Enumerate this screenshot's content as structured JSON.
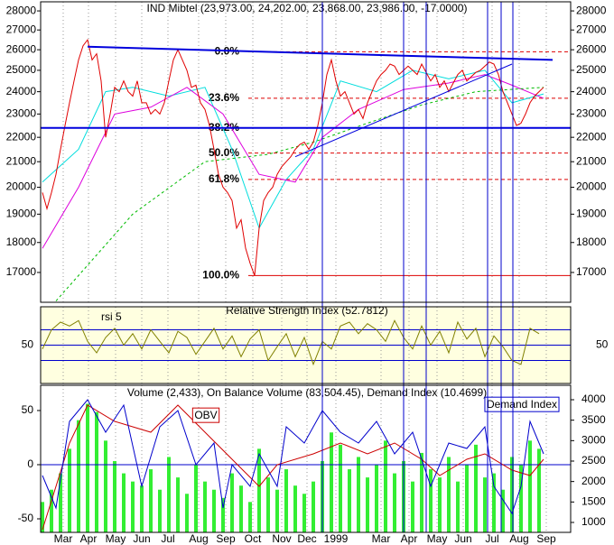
{
  "chart_data": [
    {
      "type": "line",
      "title": "IND Mibtel (23,973.00, 24,202.00, 23,868.00, 23,986.00, -17.0000)",
      "log": true,
      "ylim": [
        16060,
        28490
      ],
      "yticks": [
        17000,
        18000,
        19000,
        20000,
        21000,
        22000,
        23000,
        24000,
        25000,
        26000,
        27000,
        28000
      ],
      "values": [
        19800,
        19200,
        19800,
        20500,
        21500,
        22500,
        23500,
        24500,
        25500,
        26200,
        26500,
        25500,
        25800,
        24500,
        22000,
        23000,
        24200,
        24000,
        24500,
        24000,
        23800,
        24500,
        23500,
        23500,
        23000,
        23200,
        23000,
        23500,
        24500,
        25500,
        26000,
        25500,
        25000,
        24200,
        24300,
        23500,
        23200,
        22500,
        21500,
        20500,
        20000,
        19800,
        19500,
        18500,
        18800,
        17800,
        17300,
        16900,
        18500,
        19500,
        19800,
        20000,
        20500,
        20800,
        21000,
        21200,
        21500,
        21700,
        21800,
        21500,
        21800,
        22500,
        23500,
        24800,
        25500,
        24500,
        23800,
        24000,
        23500,
        23000,
        23200,
        22800,
        23500,
        24000,
        24500,
        24800,
        25000,
        25300,
        25200,
        24800,
        25000,
        25200,
        25000,
        24800,
        25300,
        24900,
        24500,
        24800,
        24200,
        24500,
        24000,
        24400,
        24800,
        25000,
        24500,
        24700,
        24900,
        25000,
        25200,
        25400,
        25300,
        24800,
        24000,
        23500,
        23000,
        22500,
        22600,
        23000,
        23500,
        23800,
        24000,
        24200
      ],
      "color": "#e00000",
      "averages": [
        {
          "color": "#00dddd",
          "x": [
            0,
            8,
            14,
            20,
            28,
            36,
            42,
            48,
            54,
            60,
            66,
            74,
            82,
            90,
            98,
            104,
            111
          ],
          "values": [
            20200,
            21500,
            24000,
            24200,
            23800,
            24200,
            21500,
            18500,
            20300,
            21500,
            24500,
            24000,
            25000,
            24600,
            25000,
            23500,
            23900
          ]
        },
        {
          "color": "#dd00dd",
          "x": [
            0,
            8,
            16,
            24,
            32,
            40,
            48,
            56,
            62,
            70,
            80,
            90,
            98,
            104,
            111
          ],
          "values": [
            17800,
            20000,
            23000,
            23300,
            24200,
            23000,
            20500,
            20200,
            22000,
            23200,
            24100,
            24400,
            24800,
            24300,
            23700
          ]
        },
        {
          "color": "#00bb00",
          "dashed": true,
          "x": [
            3,
            20,
            36,
            50,
            60,
            72,
            84,
            96,
            111
          ],
          "values": [
            16100,
            19000,
            21000,
            21300,
            21800,
            22600,
            23400,
            24000,
            24200
          ]
        }
      ],
      "fib_levels": [
        {
          "label": "0.0%",
          "value": 25900
        },
        {
          "label": "23.6%",
          "value": 23700
        },
        {
          "label": "38.2%",
          "value": 22400
        },
        {
          "label": "50.0%",
          "value": 21350
        },
        {
          "label": "61.8%",
          "value": 20300
        },
        {
          "label": "100.0%",
          "value": 16900
        }
      ],
      "trend_lines": [
        {
          "x": [
            10,
            113
          ],
          "y": [
            26150,
            25500
          ]
        },
        {
          "x": [
            -0.4,
            117
          ],
          "y": [
            22400,
            22400
          ]
        },
        {
          "x": [
            56,
            104
          ],
          "y": [
            21200,
            25300
          ]
        }
      ],
      "vlines": [
        62,
        80,
        85,
        98.6,
        101.6,
        104.2
      ]
    },
    {
      "type": "line",
      "title": "Relative Strength Index (52.7812)",
      "label": "rsi 5",
      "ylim": [
        0,
        100
      ],
      "yticks": [
        50
      ],
      "levels": [
        70,
        30
      ],
      "color": "#808000",
      "x": [
        0,
        2,
        4,
        6,
        8,
        10,
        12,
        14,
        16,
        18,
        20,
        22,
        24,
        26,
        28,
        30,
        32,
        34,
        36,
        38,
        40,
        42,
        44,
        46,
        48,
        50,
        52,
        54,
        56,
        58,
        60,
        62,
        64,
        66,
        68,
        70,
        72,
        74,
        76,
        78,
        80,
        82,
        84,
        86,
        88,
        90,
        92,
        94,
        96,
        98,
        100,
        102,
        104,
        106,
        108,
        110
      ],
      "values": [
        45,
        70,
        80,
        75,
        82,
        55,
        40,
        60,
        72,
        50,
        65,
        45,
        70,
        55,
        40,
        68,
        60,
        38,
        55,
        72,
        45,
        62,
        35,
        58,
        70,
        30,
        48,
        65,
        35,
        60,
        25,
        55,
        45,
        75,
        80,
        65,
        78,
        70,
        55,
        82,
        60,
        45,
        75,
        50,
        68,
        40,
        80,
        58,
        72,
        35,
        62,
        48,
        30,
        25,
        72,
        65
      ]
    },
    {
      "type": "bar-line",
      "title": "Volume (2,433), On Balance Volume (83,504.45), Demand Index (10.4699)",
      "xlim": [
        -0.4,
        117
      ],
      "xticks": [
        {
          "value": 4.6,
          "label": "Mar"
        },
        {
          "value": 10.2,
          "label": "Apr"
        },
        {
          "value": 16.2,
          "label": "May"
        },
        {
          "value": 22,
          "label": "Jun"
        },
        {
          "value": 27.8,
          "label": "Jul"
        },
        {
          "value": 34.6,
          "label": "Aug"
        },
        {
          "value": 40.6,
          "label": "Sep"
        },
        {
          "value": 46.6,
          "label": "Oct"
        },
        {
          "value": 53,
          "label": "Nov"
        },
        {
          "value": 58.6,
          "label": "Dec"
        },
        {
          "value": 65,
          "label": "1999"
        },
        {
          "value": 75,
          "label": "Mar"
        },
        {
          "value": 81.2,
          "label": "Apr"
        },
        {
          "value": 87.4,
          "label": "May"
        },
        {
          "value": 93.2,
          "label": "Jun"
        },
        {
          "value": 99.6,
          "label": "Jul"
        },
        {
          "value": 105.6,
          "label": "Aug"
        },
        {
          "value": 111.6,
          "label": "Sep"
        }
      ],
      "ylim": [
        -62.5,
        73.3
      ],
      "yticks": [
        -50,
        0,
        50
      ],
      "y2lim": [
        757,
        4353
      ],
      "y2ticks": [
        1000,
        1500,
        2000,
        2500,
        3000,
        3500,
        4000
      ],
      "volume": {
        "axis": "y2",
        "color": "#33ee33",
        "x": [
          0,
          2,
          4,
          6,
          8,
          10,
          12,
          14,
          16,
          18,
          20,
          22,
          24,
          26,
          28,
          30,
          32,
          34,
          36,
          38,
          40,
          42,
          44,
          46,
          48,
          50,
          52,
          54,
          56,
          58,
          60,
          62,
          64,
          66,
          68,
          70,
          72,
          74,
          76,
          78,
          80,
          82,
          84,
          86,
          88,
          90,
          92,
          94,
          96,
          98,
          100,
          102,
          104,
          106,
          108,
          110
        ],
        "values": [
          1500,
          1800,
          2200,
          2800,
          3500,
          3900,
          3700,
          3000,
          2500,
          2200,
          2000,
          1900,
          2300,
          1800,
          2600,
          2100,
          1700,
          2400,
          2000,
          1800,
          1600,
          2200,
          1900,
          1500,
          2800,
          2100,
          1800,
          2300,
          1900,
          1700,
          2000,
          2500,
          3200,
          2900,
          2300,
          2600,
          2100,
          2400,
          3000,
          2200,
          2500,
          2000,
          2700,
          2300,
          2100,
          2600,
          2000,
          2400,
          2900,
          2100,
          2200,
          1800,
          2600,
          2400,
          3000,
          2800
        ]
      },
      "series": [
        {
          "name": "OBV",
          "color": "#cc0000",
          "x": [
            0,
            6,
            10,
            16,
            24,
            30,
            36,
            42,
            48,
            52,
            60,
            66,
            72,
            78,
            84,
            88,
            94,
            98,
            104,
            108,
            111
          ],
          "values": [
            -60,
            20,
            55,
            40,
            30,
            55,
            30,
            5,
            -20,
            0,
            10,
            20,
            10,
            20,
            5,
            -10,
            5,
            10,
            -5,
            -10,
            5
          ]
        },
        {
          "name": "Demand Index",
          "color": "#0000cc",
          "x": [
            0,
            3,
            6,
            10,
            14,
            18,
            22,
            26,
            30,
            34,
            38,
            40,
            42,
            46,
            48,
            52,
            54,
            58,
            62,
            66,
            70,
            74,
            78,
            82,
            86,
            90,
            94,
            98,
            100,
            104,
            106,
            108,
            110,
            111
          ],
          "values": [
            -10,
            -40,
            40,
            60,
            30,
            55,
            -20,
            35,
            50,
            0,
            20,
            -40,
            0,
            -20,
            10,
            -20,
            35,
            20,
            50,
            30,
            20,
            40,
            10,
            30,
            -20,
            20,
            15,
            35,
            -20,
            -45,
            -20,
            40,
            20,
            10
          ]
        }
      ]
    }
  ]
}
